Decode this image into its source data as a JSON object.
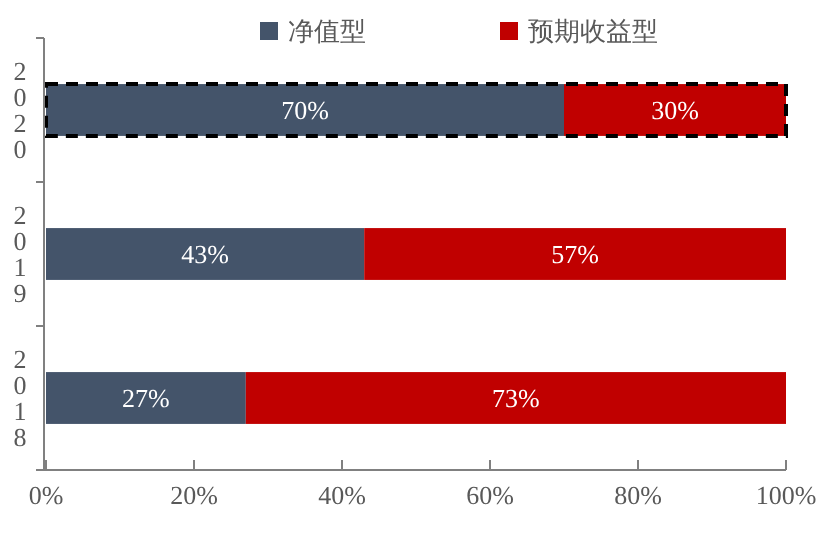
{
  "chart_data": {
    "type": "bar",
    "orientation": "horizontal",
    "stacked": true,
    "categories": [
      "2020",
      "2019",
      "2018"
    ],
    "series": [
      {
        "name": "净值型",
        "color": "#44546a",
        "values": [
          70,
          43,
          27
        ]
      },
      {
        "name": "预期收益型",
        "color": "#c00000",
        "values": [
          30,
          57,
          73
        ]
      }
    ],
    "xlim": [
      0,
      100
    ],
    "xticks": [
      {
        "value": 0,
        "label": "0%"
      },
      {
        "value": 20,
        "label": "20%"
      },
      {
        "value": 40,
        "label": "40%"
      },
      {
        "value": 60,
        "label": "60%"
      },
      {
        "value": 80,
        "label": "80%"
      },
      {
        "value": 100,
        "label": "100%"
      }
    ],
    "value_labels": [
      [
        "70%",
        "43%",
        "27%"
      ],
      [
        "30%",
        "57%",
        "73%"
      ]
    ],
    "legend": "top",
    "grid": false
  }
}
